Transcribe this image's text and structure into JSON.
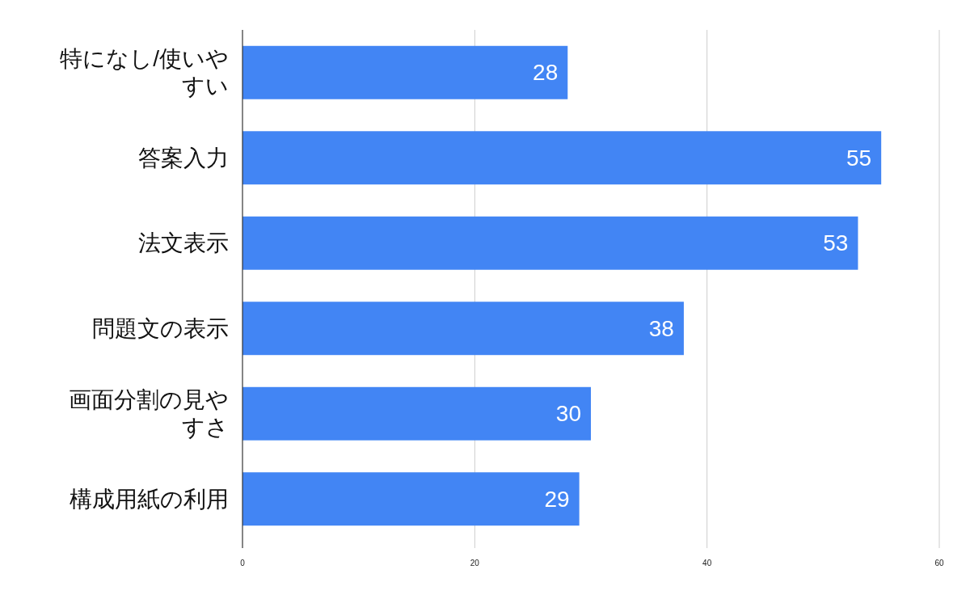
{
  "chart_data": {
    "type": "bar",
    "orientation": "horizontal",
    "categories": [
      "特になし/使いやすい",
      "答案入力",
      "法文表示",
      "問題文の表示",
      "画面分割の見やすさ",
      "構成用紙の利用"
    ],
    "values": [
      28,
      55,
      53,
      38,
      30,
      29
    ],
    "color": "#4285f4",
    "xlim": [
      0,
      60
    ],
    "xticks": [
      0,
      20,
      40,
      60
    ],
    "grid": "x",
    "data_labels": true
  }
}
